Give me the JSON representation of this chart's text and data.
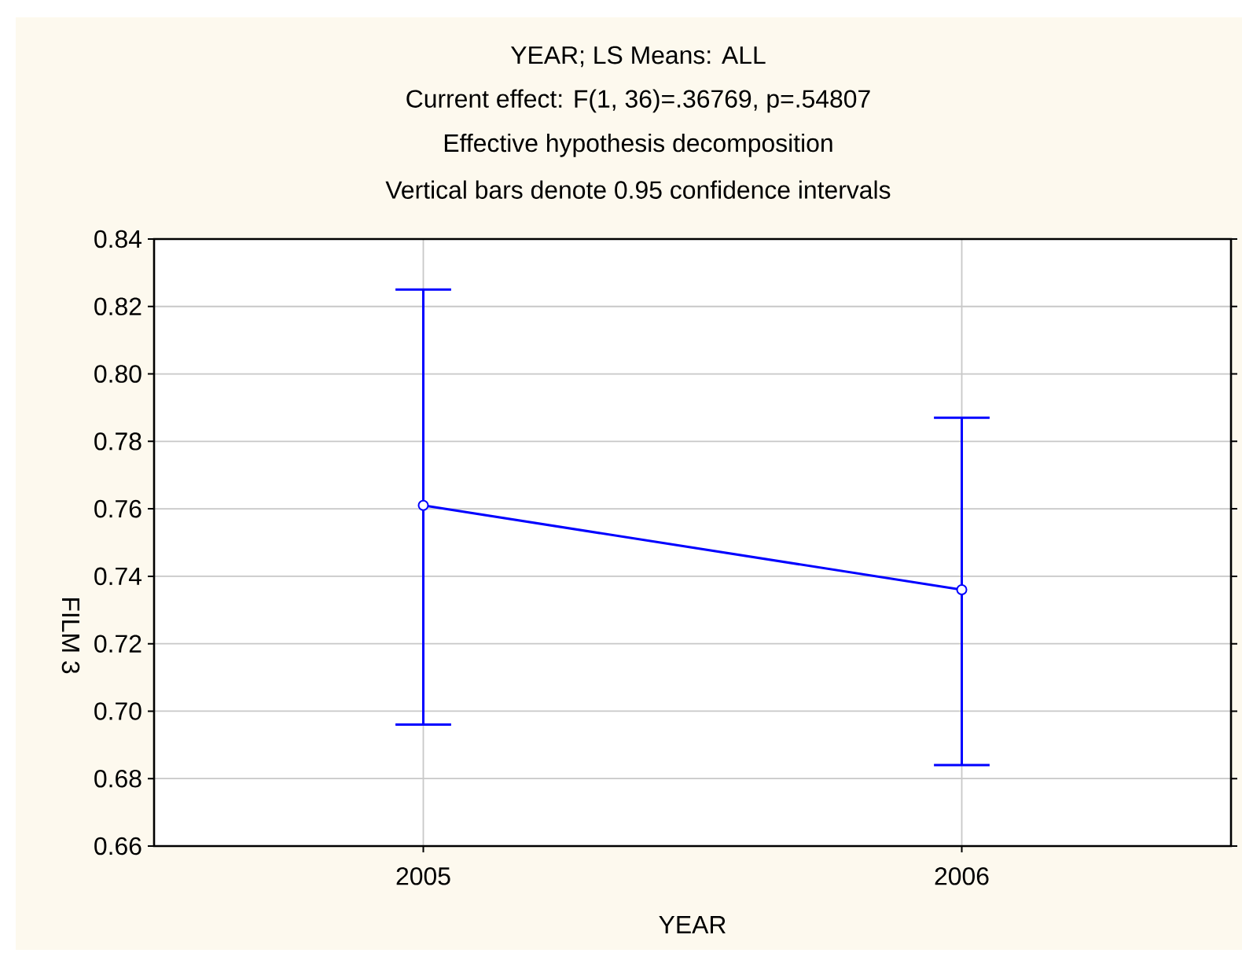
{
  "chart_data": {
    "type": "line",
    "title": "YEAR; LS Means: ALL",
    "subtitle": "Current effect: F(1, 36)=.36769, p=.54807",
    "annotations": [
      "Effective hypothesis decomposition",
      "Vertical bars denote 0.95 confidence intervals"
    ],
    "xlabel": "YEAR",
    "ylabel": "FILM 3",
    "categories": [
      "2005",
      "2006"
    ],
    "values": [
      0.761,
      0.736
    ],
    "errors": [
      [
        0.696,
        0.825
      ],
      [
        0.684,
        0.787
      ]
    ],
    "color": "#0000ff",
    "ylim": [
      0.66,
      0.84
    ],
    "yticks": [
      0.66,
      0.68,
      {
        "value": 0.7,
        "label": "0.70"
      },
      0.72,
      0.74,
      0.76,
      0.78,
      {
        "value": 0.8,
        "label": "0.80"
      },
      0.82,
      0.84
    ],
    "grid": true,
    "marker": "circle",
    "line_style": "solid"
  }
}
